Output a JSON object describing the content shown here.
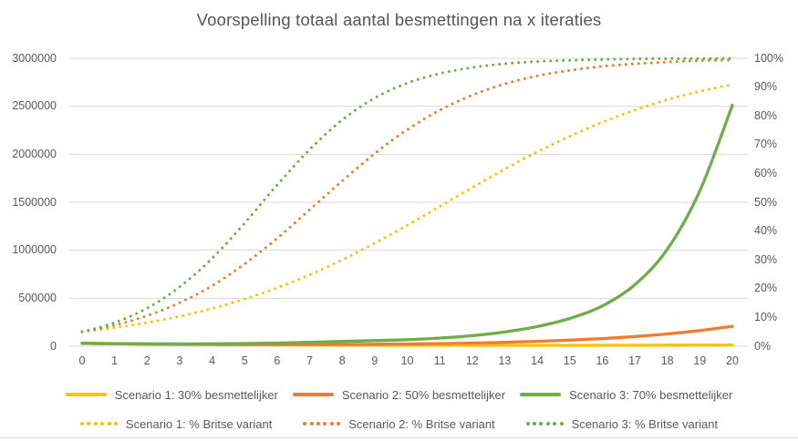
{
  "chart_data": {
    "type": "line",
    "title": "Voorspelling totaal aantal besmettingen na x iteraties",
    "x": [
      0,
      1,
      2,
      3,
      4,
      5,
      6,
      7,
      8,
      9,
      10,
      11,
      12,
      13,
      14,
      15,
      16,
      17,
      18,
      19,
      20
    ],
    "x_axis": {
      "ticks": [
        "0",
        "1",
        "2",
        "3",
        "4",
        "5",
        "6",
        "7",
        "8",
        "9",
        "10",
        "11",
        "12",
        "13",
        "14",
        "15",
        "16",
        "17",
        "18",
        "19",
        "20"
      ]
    },
    "left_axis": {
      "min": 0,
      "max": 3000000,
      "tick_labels": [
        "3000000",
        "2500000",
        "2000000",
        "1500000",
        "1000000",
        "500000",
        "0"
      ],
      "tick_values": [
        3000000,
        2500000,
        2000000,
        1500000,
        1000000,
        500000,
        0
      ]
    },
    "right_axis": {
      "min": 0,
      "max": 100,
      "tick_labels": [
        "100%",
        "90%",
        "80%",
        "70%",
        "60%",
        "50%",
        "40%",
        "30%",
        "20%",
        "10%",
        "0%"
      ],
      "tick_values": [
        100,
        90,
        80,
        70,
        60,
        50,
        40,
        30,
        20,
        10,
        0
      ]
    },
    "grid": true,
    "legend_position": "bottom",
    "colors": {
      "scenario1": "#FFC000",
      "scenario2": "#ED7D31",
      "scenario3": "#70AD47",
      "gridline": "#D9D9D9",
      "axis_text": "#595959"
    },
    "series": [
      {
        "name": "Scenario 1: 30% besmettelijker",
        "style": "solid",
        "axis": "left",
        "color": "#FFC000",
        "values": [
          30100,
          25993,
          22545,
          19662,
          17263,
          15281,
          13661,
          12355,
          11323,
          10531,
          9954,
          9568,
          9357,
          9306,
          9404,
          9644,
          10022,
          10535,
          11183,
          11967,
          12892
        ]
      },
      {
        "name": "Scenario 2: 50% besmettelijker",
        "style": "solid",
        "axis": "left",
        "color": "#ED7D31",
        "values": [
          30100,
          26265,
          23192,
          20819,
          19105,
          18036,
          17622,
          17900,
          18940,
          20848,
          23776,
          27930,
          33584,
          41097,
          50934,
          63695,
          80154,
          101297,
          128389,
          163047,
          207332
        ]
      },
      {
        "name": "Scenario 3: 70% besmettelijker",
        "style": "solid",
        "axis": "left",
        "color": "#70AD47",
        "values": [
          30100,
          27000,
          25200,
          24800,
          25800,
          28500,
          33500,
          41000,
          50000,
          58500,
          68000,
          85000,
          110000,
          148000,
          205000,
          290000,
          420000,
          640000,
          1010000,
          1620000,
          2510000
        ]
      },
      {
        "name": "Scenario 1: % Britse variant",
        "style": "dotted",
        "axis": "right",
        "color": "#FFC000",
        "values": [
          5.0,
          6.4,
          8.2,
          10.4,
          13.1,
          16.4,
          20.3,
          24.8,
          30.0,
          35.8,
          42.0,
          48.5,
          55.1,
          61.5,
          67.5,
          72.9,
          77.8,
          82.0,
          85.6,
          88.5,
          90.9
        ]
      },
      {
        "name": "Scenario 2: % Britse variant",
        "style": "dotted",
        "axis": "right",
        "color": "#ED7D31",
        "values": [
          5.0,
          7.3,
          10.6,
          15.1,
          21.0,
          28.6,
          37.5,
          47.4,
          57.4,
          66.9,
          75.2,
          82.0,
          87.2,
          91.1,
          93.9,
          95.8,
          97.2,
          98.1,
          98.7,
          99.2,
          99.4
        ]
      },
      {
        "name": "Scenario 3: % Britse variant",
        "style": "dotted",
        "axis": "right",
        "color": "#70AD47",
        "values": [
          5.0,
          8.2,
          13.2,
          20.6,
          30.5,
          42.8,
          56.0,
          68.3,
          78.6,
          86.2,
          91.4,
          94.7,
          96.8,
          98.1,
          98.9,
          99.3,
          99.6,
          99.8,
          99.9,
          99.9,
          100.0
        ]
      }
    ]
  }
}
